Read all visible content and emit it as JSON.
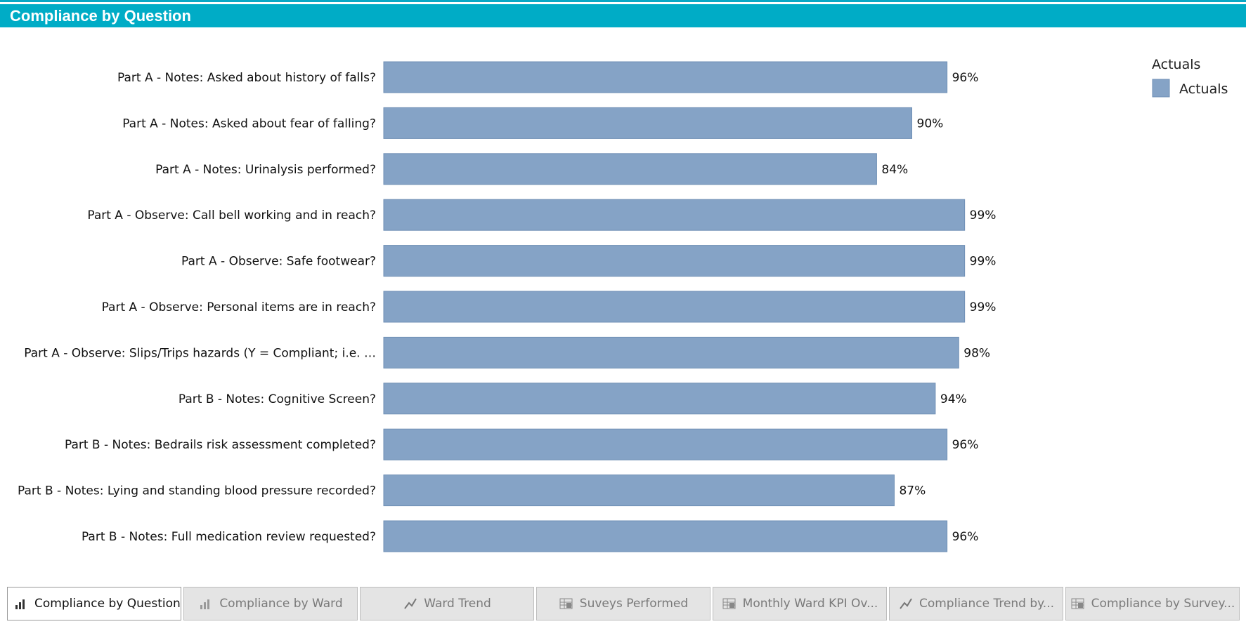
{
  "header": {
    "title": "Compliance by Question"
  },
  "colors": {
    "bar": "#85a3c6",
    "bar_border": "#6f8fb5",
    "header": "#00acc6"
  },
  "chart_data": {
    "type": "bar",
    "orientation": "horizontal",
    "title": "",
    "xlabel": "",
    "ylabel": "",
    "xlim": [
      0,
      100
    ],
    "grid": false,
    "legend": {
      "title": "Actuals",
      "placement": "top-right",
      "entries": [
        "Actuals"
      ]
    },
    "categories": [
      "Part A - Notes: Asked about history of falls?",
      "Part A - Notes: Asked about fear of falling?",
      "Part A - Notes: Urinalysis performed?",
      "Part A - Observe: Call bell working and in reach?",
      "Part A - Observe: Safe footwear?",
      "Part A - Observe: Personal items are in reach?",
      "Part A - Observe: Slips/Trips hazards (Y = Compliant; i.e. …",
      "Part B - Notes: Cognitive Screen?",
      "Part B - Notes: Bedrails risk assessment completed?",
      "Part B - Notes: Lying and standing blood pressure recorded?",
      "Part B - Notes: Full medication review requested?"
    ],
    "series": [
      {
        "name": "Actuals",
        "values": [
          96,
          90,
          84,
          99,
          99,
          99,
          98,
          94,
          96,
          87,
          96
        ],
        "labels": [
          "96%",
          "90%",
          "84%",
          "99%",
          "99%",
          "99%",
          "98%",
          "94%",
          "96%",
          "87%",
          "96%"
        ]
      }
    ]
  },
  "tabs": [
    {
      "label": "Compliance by Question",
      "icon": "bar-chart-icon",
      "active": true
    },
    {
      "label": "Compliance by Ward",
      "icon": "bar-chart-icon",
      "active": false
    },
    {
      "label": "Ward Trend",
      "icon": "line-chart-icon",
      "active": false
    },
    {
      "label": "Suveys Performed",
      "icon": "table-icon",
      "active": false
    },
    {
      "label": "Monthly Ward KPI Ov...",
      "icon": "table-icon",
      "active": false
    },
    {
      "label": "Compliance Trend by...",
      "icon": "line-chart-icon",
      "active": false
    },
    {
      "label": "Compliance by Survey...",
      "icon": "table-icon",
      "active": false
    }
  ]
}
